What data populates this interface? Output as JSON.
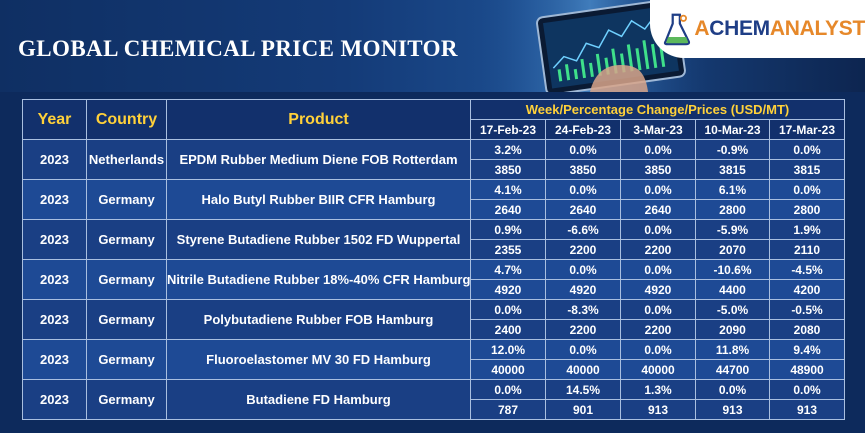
{
  "header": {
    "title": "GLOBAL CHEMICAL PRICE MONITOR",
    "logo_part1": "CHEM",
    "logo_part2": "ANALYST",
    "logo_icon": "flask-icon"
  },
  "table": {
    "columns": {
      "year": "Year",
      "country": "Country",
      "product": "Product",
      "group": "Week/Percentage Change/Prices (USD/MT)"
    },
    "dates": [
      "17-Feb-23",
      "24-Feb-23",
      "3-Mar-23",
      "10-Mar-23",
      "17-Mar-23"
    ],
    "rows": [
      {
        "year": "2023",
        "country": "Netherlands",
        "product": "EPDM Rubber Medium Diene FOB Rotterdam",
        "changes": [
          "3.2%",
          "0.0%",
          "0.0%",
          "-0.9%",
          "0.0%"
        ],
        "prices": [
          "3850",
          "3850",
          "3850",
          "3815",
          "3815"
        ]
      },
      {
        "year": "2023",
        "country": "Germany",
        "product": "Halo Butyl Rubber BIIR CFR Hamburg",
        "changes": [
          "4.1%",
          "0.0%",
          "0.0%",
          "6.1%",
          "0.0%"
        ],
        "prices": [
          "2640",
          "2640",
          "2640",
          "2800",
          "2800"
        ]
      },
      {
        "year": "2023",
        "country": "Germany",
        "product": "Styrene Butadiene Rubber 1502 FD Wuppertal",
        "changes": [
          "0.9%",
          "-6.6%",
          "0.0%",
          "-5.9%",
          "1.9%"
        ],
        "prices": [
          "2355",
          "2200",
          "2200",
          "2070",
          "2110"
        ]
      },
      {
        "year": "2023",
        "country": "Germany",
        "product": "Nitrile Butadiene Rubber 18%-40% CFR Hamburg",
        "changes": [
          "4.7%",
          "0.0%",
          "0.0%",
          "-10.6%",
          "-4.5%"
        ],
        "prices": [
          "4920",
          "4920",
          "4920",
          "4400",
          "4200"
        ]
      },
      {
        "year": "2023",
        "country": "Germany",
        "product": "Polybutadiene Rubber FOB Hamburg",
        "changes": [
          "0.0%",
          "-8.3%",
          "0.0%",
          "-5.0%",
          "-0.5%"
        ],
        "prices": [
          "2400",
          "2200",
          "2200",
          "2090",
          "2080"
        ]
      },
      {
        "year": "2023",
        "country": "Germany",
        "product": "Fluoroelastomer MV 30 FD Hamburg",
        "changes": [
          "12.0%",
          "0.0%",
          "0.0%",
          "11.8%",
          "9.4%"
        ],
        "prices": [
          "40000",
          "40000",
          "40000",
          "44700",
          "48900"
        ]
      },
      {
        "year": "2023",
        "country": "Germany",
        "product": "Butadiene FD Hamburg",
        "changes": [
          "0.0%",
          "14.5%",
          "1.3%",
          "0.0%",
          "0.0%"
        ],
        "prices": [
          "787",
          "901",
          "913",
          "913",
          "913"
        ]
      }
    ]
  }
}
